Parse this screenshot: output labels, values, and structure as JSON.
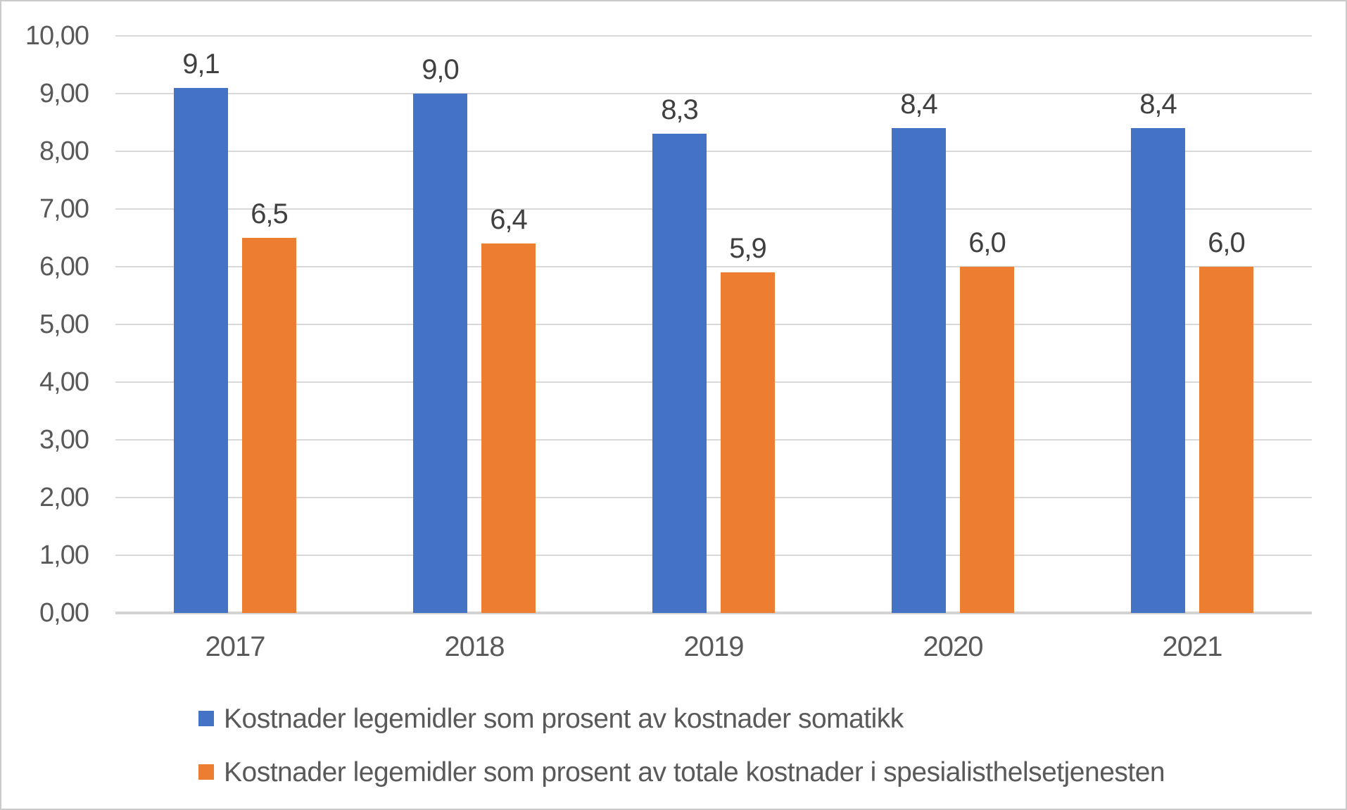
{
  "chart_data": {
    "type": "bar",
    "categories": [
      "2017",
      "2018",
      "2019",
      "2020",
      "2021"
    ],
    "series": [
      {
        "name": "Kostnader legemidler som prosent av kostnader somatikk",
        "key": "somatikk",
        "color": "#4472C4",
        "values": [
          9.1,
          9.0,
          8.3,
          8.4,
          8.4
        ],
        "value_labels": [
          "9,1",
          "9,0",
          "8,3",
          "8,4",
          "8,4"
        ]
      },
      {
        "name": "Kostnader legemidler som prosent av totale kostnader i spesialisthelsetjenesten",
        "key": "spesialisthelsetjenesten",
        "color": "#ED7D31",
        "values": [
          6.5,
          6.4,
          5.9,
          6.0,
          6.0
        ],
        "value_labels": [
          "6,5",
          "6,4",
          "5,9",
          "6,0",
          "6,0"
        ]
      }
    ],
    "ylim": [
      0,
      10
    ],
    "yticks": [
      {
        "value": 0,
        "label": "0,00"
      },
      {
        "value": 1,
        "label": "1,00"
      },
      {
        "value": 2,
        "label": "2,00"
      },
      {
        "value": 3,
        "label": "3,00"
      },
      {
        "value": 4,
        "label": "4,00"
      },
      {
        "value": 5,
        "label": "5,00"
      },
      {
        "value": 6,
        "label": "6,00"
      },
      {
        "value": 7,
        "label": "7,00"
      },
      {
        "value": 8,
        "label": "8,00"
      },
      {
        "value": 9,
        "label": "9,00"
      },
      {
        "value": 10,
        "label": "10,00"
      }
    ],
    "grid": true,
    "legend_position": "bottom-left",
    "gridline_color": "#D9D9D9",
    "axis_line_color": "#D2D2D2",
    "tick_text_color": "#595959",
    "data_label_color": "#404040",
    "frame_border_color": "#CBCBCB"
  }
}
